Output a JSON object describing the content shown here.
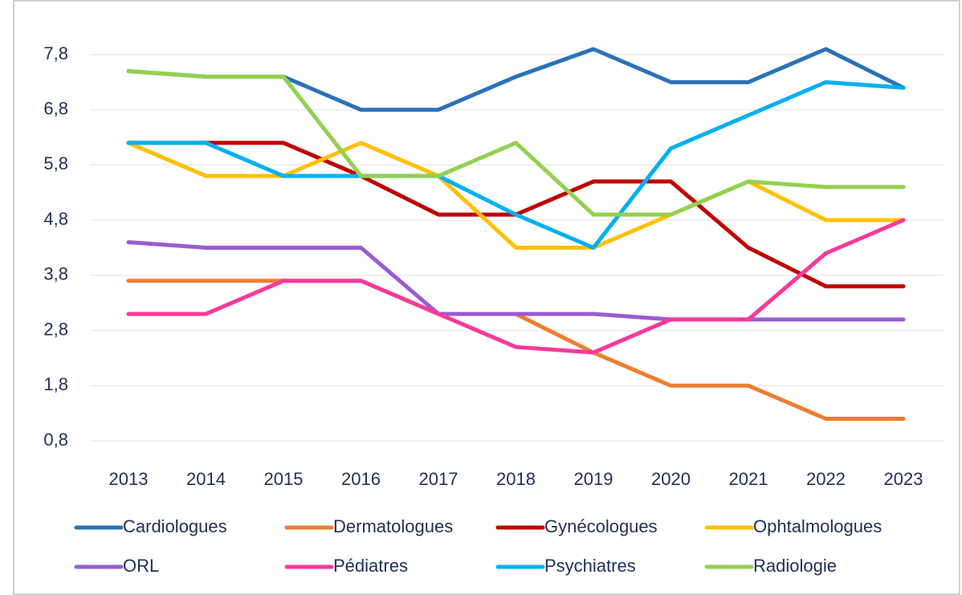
{
  "chart_data": {
    "type": "line",
    "categories": [
      "2013",
      "2014",
      "2015",
      "2016",
      "2017",
      "2018",
      "2019",
      "2020",
      "2021",
      "2022",
      "2023"
    ],
    "series": [
      {
        "name": "Cardiologues",
        "color": "#2a72b8",
        "values": [
          7.5,
          7.4,
          7.4,
          6.8,
          6.8,
          7.4,
          7.9,
          7.3,
          7.3,
          7.9,
          7.2
        ]
      },
      {
        "name": "Dermatologues",
        "color": "#ed7d31",
        "values": [
          3.7,
          3.7,
          3.7,
          3.7,
          3.1,
          3.1,
          2.4,
          1.8,
          1.8,
          1.2,
          1.2
        ]
      },
      {
        "name": "Gynécologues",
        "color": "#c00000",
        "values": [
          6.2,
          6.2,
          6.2,
          5.6,
          4.9,
          4.9,
          5.5,
          5.5,
          4.3,
          3.6,
          3.6
        ]
      },
      {
        "name": "Ophtalmologues",
        "color": "#ffc000",
        "values": [
          6.2,
          5.6,
          5.6,
          6.2,
          5.6,
          4.3,
          4.3,
          4.9,
          5.5,
          4.8,
          4.8
        ]
      },
      {
        "name": "ORL",
        "color": "#9b5bd1",
        "values": [
          4.4,
          4.3,
          4.3,
          4.3,
          3.1,
          3.1,
          3.1,
          3.0,
          3.0,
          3.0,
          3.0
        ]
      },
      {
        "name": "Pédiatres",
        "color": "#f7399a",
        "values": [
          3.1,
          3.1,
          3.7,
          3.7,
          3.1,
          2.5,
          2.4,
          3.0,
          3.0,
          4.2,
          4.8
        ]
      },
      {
        "name": "Psychiatres",
        "color": "#00b0f0",
        "values": [
          6.2,
          6.2,
          5.6,
          5.6,
          5.6,
          4.9,
          4.3,
          6.1,
          6.7,
          7.3,
          7.2
        ]
      },
      {
        "name": "Radiologie",
        "color": "#92d050",
        "values": [
          7.5,
          7.4,
          7.4,
          5.6,
          5.6,
          6.2,
          4.9,
          4.9,
          5.5,
          5.4,
          5.4
        ]
      }
    ],
    "ylim": [
      0.8,
      8.2
    ],
    "yticks": [
      {
        "value": 0.8,
        "label": "0,8"
      },
      {
        "value": 1.8,
        "label": "1,8"
      },
      {
        "value": 2.8,
        "label": "2,8"
      },
      {
        "value": 3.8,
        "label": "3,8"
      },
      {
        "value": 4.8,
        "label": "4,8"
      },
      {
        "value": 5.8,
        "label": "5,8"
      },
      {
        "value": 6.8,
        "label": "6,8"
      },
      {
        "value": 7.8,
        "label": "7,8"
      }
    ],
    "grid": true
  }
}
